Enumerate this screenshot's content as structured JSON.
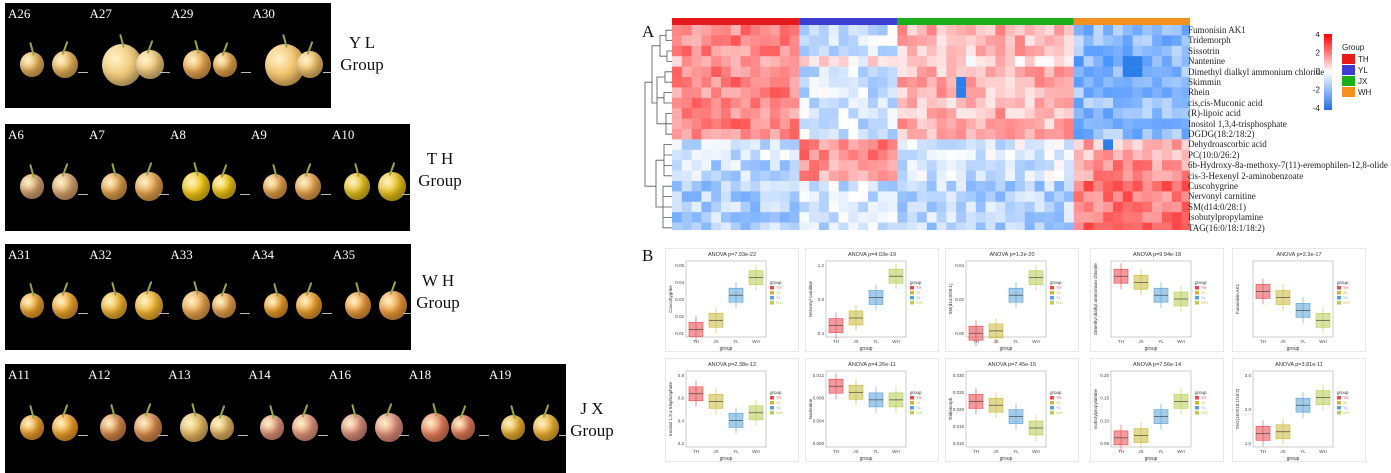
{
  "panels": [
    {
      "id": "yl",
      "group_title": "Y L\nGroup",
      "labels": [
        "A26",
        "A27",
        "A29",
        "A30"
      ]
    },
    {
      "id": "th",
      "group_title": "T H\nGroup",
      "labels": [
        "A6",
        "A7",
        "A8",
        "A9",
        "A10"
      ]
    },
    {
      "id": "wh",
      "group_title": "W H\nGroup",
      "labels": [
        "A31",
        "A32",
        "A33",
        "A34",
        "A35"
      ]
    },
    {
      "id": "jx",
      "group_title": "J X\nGroup",
      "labels": [
        "A11",
        "A12",
        "A13",
        "A14",
        "A16",
        "A18",
        "A19"
      ]
    }
  ],
  "heatmap": {
    "panel_letter": "A",
    "group_colors": {
      "TH": "#e41a1c",
      "YL": "#3d3dd4",
      "JX": "#1aae1a",
      "WH": "#f39121"
    },
    "rows": [
      "Fumonisin AK1",
      "Tridemorph",
      "Sissotrin",
      "Nantenine",
      "Dimethyl dialkyl ammonium chloride",
      "Skimmin",
      "Rhein",
      "cis,cis-Muconic acid",
      "(R)-lipoic acid",
      "Inositol 1,3,4-trisphosphate",
      "DGDG(18:2/18:2)",
      "Dehydroascorbic acid",
      "PC(10:0/26:2)",
      "6b-Hydroxy-8a-methoxy-7(11)-eremophilen-12,8-olide",
      "cis-3-Hexenyl 2-aminobenzoate",
      "Cuscohygrine",
      "Nervonyl carnitine",
      "SM(d14:0/28:1)",
      "Isobutylpropylamine",
      "TAG(16:0/18:1/18:2)"
    ],
    "scale_ticks": [
      "4",
      "2",
      "0",
      "-2",
      "-4"
    ],
    "legend_title": "Group",
    "legend_items": [
      "TH",
      "YL",
      "JX",
      "WH"
    ]
  },
  "boxplots": {
    "panel_letter": "B",
    "xlabel": "group",
    "categories": [
      "TH",
      "JX",
      "YL",
      "WH"
    ],
    "legend_title": "group",
    "legend_items": [
      "TH",
      "JX",
      "YL",
      "WH"
    ],
    "colors": [
      "#e8474c",
      "#c9b93a",
      "#5aa0d4",
      "#b9cc54"
    ],
    "plots": [
      {
        "title": "ANOVA p=7.93e-22",
        "ylabel": "Cuscohygrine",
        "ticks": [
          "0.05",
          "0.04",
          "0.03",
          "0.02",
          "0.01"
        ],
        "levels": [
          0.1,
          0.22,
          0.55,
          0.78
        ]
      },
      {
        "title": "ANOVA p=4.03e-19",
        "ylabel": "Nervonyl carnitine",
        "ticks": [
          "1.2",
          "0.8",
          "0.4"
        ],
        "levels": [
          0.15,
          0.25,
          0.52,
          0.8
        ]
      },
      {
        "title": "ANOVA p=1.2e-20",
        "ylabel": "SM(d14:0/28:1)",
        "ticks": [
          "0.04",
          "0.02",
          "0.00"
        ],
        "levels": [
          0.05,
          0.08,
          0.55,
          0.78
        ]
      },
      {
        "title": "ANOVA p=9.94e-18",
        "ylabel": "Dimethyl dialkyl ammonium chloride",
        "ticks": [],
        "levels": [
          0.8,
          0.72,
          0.55,
          0.5
        ]
      },
      {
        "title": "ANOVA p=2.3e-17",
        "ylabel": "Fumonisin AK1",
        "ticks": [],
        "levels": [
          0.6,
          0.52,
          0.35,
          0.22
        ]
      },
      {
        "title": "ANOVA p=2.38e-12",
        "ylabel": "Inositol 1,3,4-trisphosphate",
        "ticks": [
          "0.8",
          "0.6",
          "0.4",
          "0.2"
        ],
        "levels": [
          0.7,
          0.6,
          0.35,
          0.45
        ]
      },
      {
        "title": "ANOVA p=4.26e-11",
        "ylabel": "Nantenine",
        "ticks": [
          "0.012",
          "0.008",
          "0.004",
          "0.000"
        ],
        "levels": [
          0.8,
          0.72,
          0.62,
          0.62
        ]
      },
      {
        "title": "ANOVA p=7.45e-15",
        "ylabel": "Tridemorph",
        "ticks": [
          "0.030",
          "0.025",
          "0.020",
          "0.015",
          "0.010"
        ],
        "levels": [
          0.6,
          0.55,
          0.4,
          0.25
        ]
      },
      {
        "title": "ANOVA p=7.56e-14",
        "ylabel": "Isobutylpropylamine",
        "ticks": [
          "0.20",
          "0.15",
          "0.10",
          "0.05"
        ],
        "levels": [
          0.12,
          0.15,
          0.4,
          0.6
        ]
      },
      {
        "title": "ANOVA p=3.81e-11",
        "ylabel": "TAG(16:0/18:1/18:2)",
        "ticks": [
          "3.0",
          "2.0",
          "1.0"
        ],
        "levels": [
          0.18,
          0.2,
          0.55,
          0.65
        ]
      }
    ]
  }
}
